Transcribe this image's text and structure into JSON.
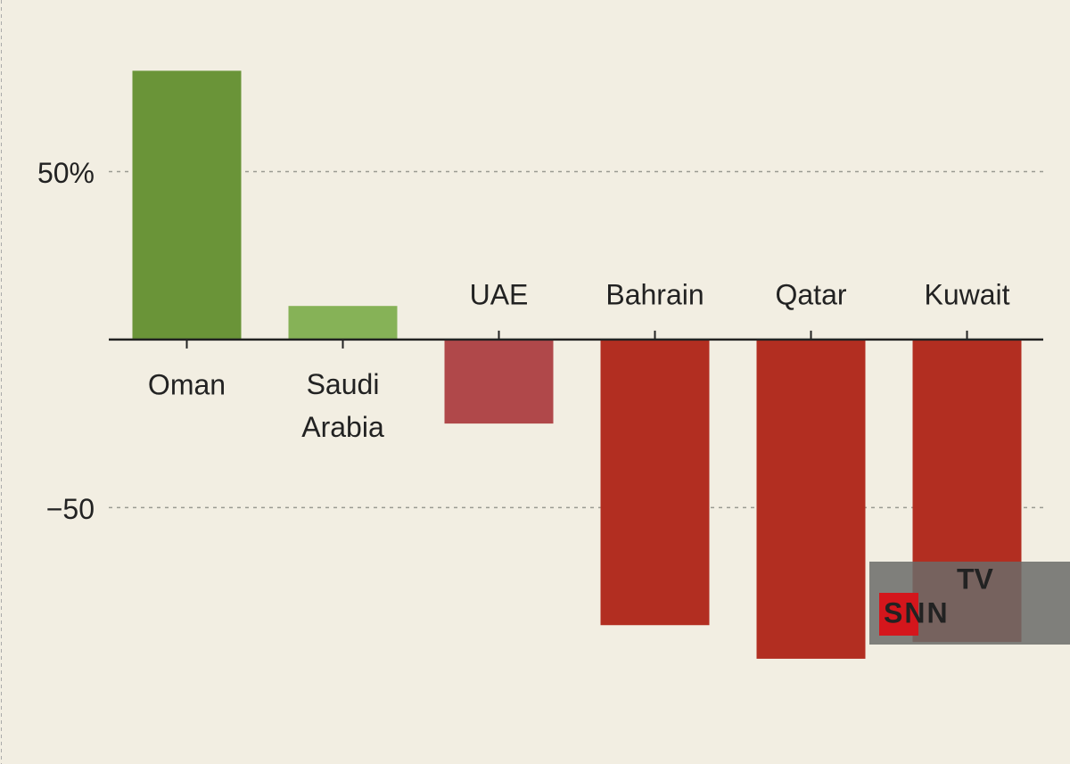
{
  "chart_data": {
    "type": "bar",
    "categories": [
      "Oman",
      "Saudi Arabia",
      "UAE",
      "Bahrain",
      "Qatar",
      "Kuwait"
    ],
    "values": [
      80,
      10,
      -25,
      -85,
      -95,
      -90
    ],
    "colors": [
      "#6a9438",
      "#86b257",
      "#b0484a",
      "#b22e21",
      "#b22e21",
      "#b22e21"
    ],
    "ylim": [
      -125,
      100
    ],
    "yticks": [
      {
        "value": 50,
        "label": "50%"
      },
      {
        "value": -50,
        "label": "−50"
      }
    ],
    "grid": true
  },
  "watermark": {
    "brand": "SNN",
    "badge": "TV"
  }
}
